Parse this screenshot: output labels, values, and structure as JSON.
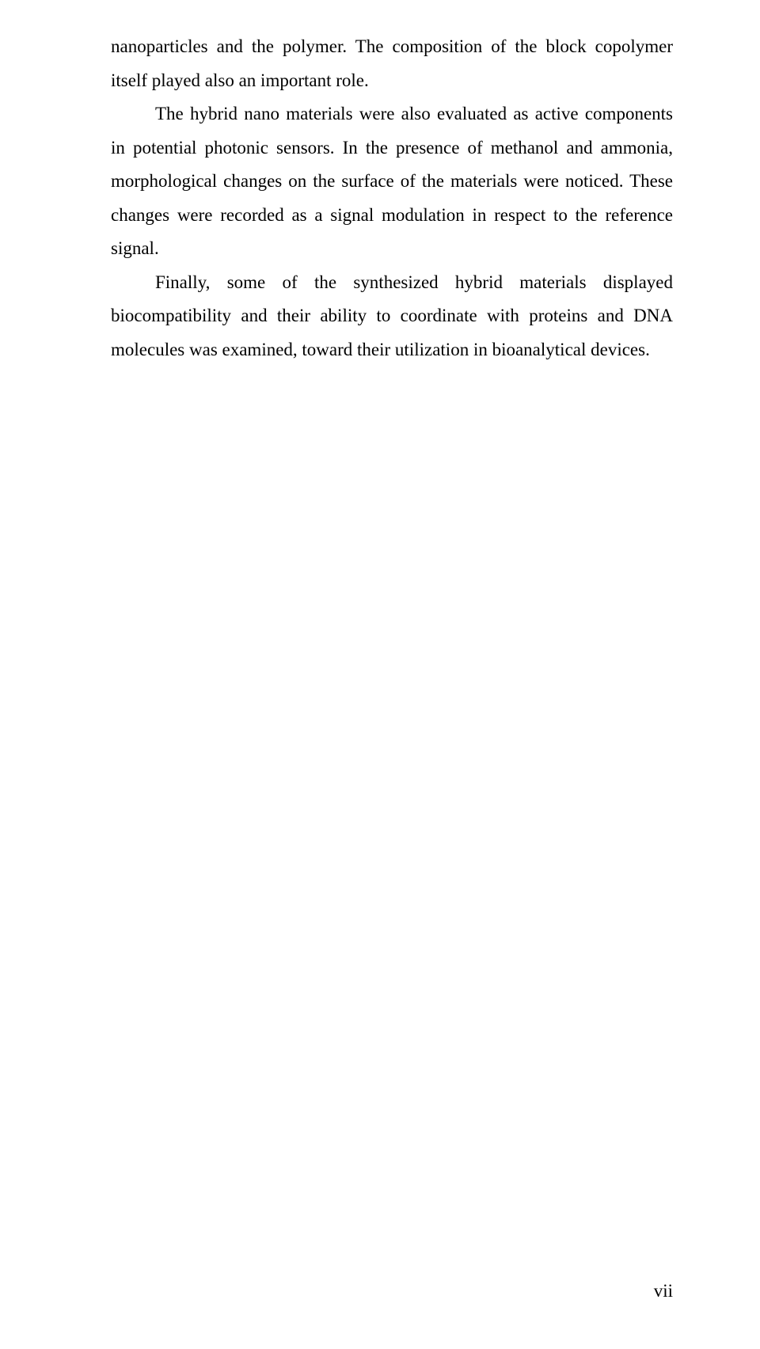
{
  "paragraphs": {
    "p1": "nanoparticles and the polymer. The composition of the block copolymer itself played also an important role.",
    "p2": "The hybrid nano materials were also evaluated as active components in potential photonic sensors. In the presence of methanol and ammonia, morphological changes on the surface of the materials were noticed. These changes were recorded as a signal modulation in respect to the reference signal.",
    "p3": "Finally, some of the synthesized hybrid materials displayed biocompatibility and their ability to coordinate with proteins and DNA molecules was examined, toward their utilization in bioanalytical devices."
  },
  "page_number": "vii"
}
